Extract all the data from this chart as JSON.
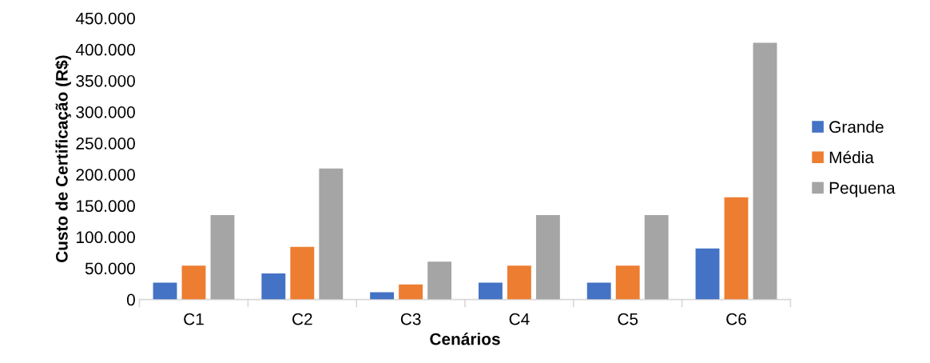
{
  "chart_data": {
    "type": "bar",
    "xlabel": "Cenários",
    "ylabel": "Custo de Certificação (R$)",
    "categories": [
      "C1",
      "C2",
      "C3",
      "C4",
      "C5",
      "C6"
    ],
    "series": [
      {
        "name": "Grande",
        "color": "#4472c4",
        "values": [
          27000,
          41500,
          11500,
          27000,
          27000,
          81500
        ]
      },
      {
        "name": "Média",
        "color": "#ed7d31",
        "values": [
          54000,
          84000,
          24000,
          54000,
          54000,
          163500
        ]
      },
      {
        "name": "Pequena",
        "color": "#a5a5a5",
        "values": [
          135000,
          209500,
          60500,
          135000,
          135000,
          410500
        ]
      }
    ],
    "ylim": [
      0,
      450000
    ],
    "yticks": [
      {
        "value": 0,
        "label": "0"
      },
      {
        "value": 50000,
        "label": "50.000"
      },
      {
        "value": 100000,
        "label": "100.000"
      },
      {
        "value": 150000,
        "label": "150.000"
      },
      {
        "value": 200000,
        "label": "200.000"
      },
      {
        "value": 250000,
        "label": "250.000"
      },
      {
        "value": 300000,
        "label": "300.000"
      },
      {
        "value": 350000,
        "label": "350.000"
      },
      {
        "value": 400000,
        "label": "400.000"
      },
      {
        "value": 450000,
        "label": "450.000"
      }
    ],
    "grid": false,
    "legend": "right"
  }
}
